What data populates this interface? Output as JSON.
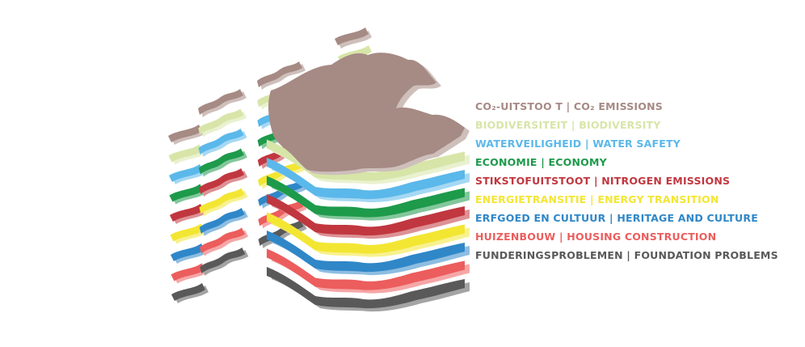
{
  "layers": [
    {
      "label": "CO₂-UITSTOO T | CO₂ EMISSIONS",
      "color": "#a68a84"
    },
    {
      "label": "BIODIVERSITEIT | BIODIVERSITY",
      "color": "#d7e5a8"
    },
    {
      "label": "WATERVEILIGHEID | WATER SAFETY",
      "color": "#5bb8ea"
    },
    {
      "label": "ECONOMIE | ECONOMY",
      "color": "#1e9a4b"
    },
    {
      "label": "STIKSTOFUITSTOOT | NITROGEN EMISSIONS",
      "color": "#c1373f"
    },
    {
      "label": "ENERGIETRANSITIE | ENERGY TRANSITION",
      "color": "#f3e633"
    },
    {
      "label": "ERFGOED EN CULTUUR | HERITAGE AND CULTURE",
      "color": "#2f87c8"
    },
    {
      "label": "HUIZENBOUW | HOUSING CONSTRUCTION",
      "color": "#ec5d5d"
    },
    {
      "label": "FUNDERINGSPROBLEMEN | FOUNDATION PROBLEMS",
      "color": "#595959"
    }
  ]
}
